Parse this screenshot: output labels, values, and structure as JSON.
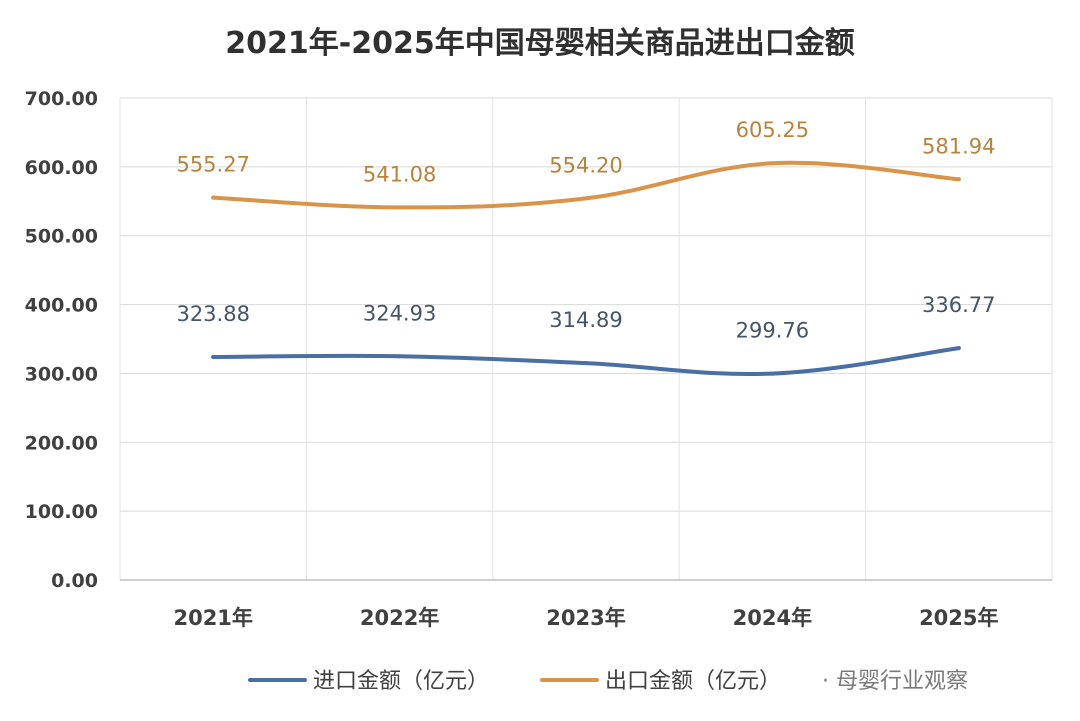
{
  "chart_data": {
    "type": "line",
    "title": "2021年-2025年中国母婴相关商品进出口金额",
    "categories": [
      "2021年",
      "2022年",
      "2023年",
      "2024年",
      "2025年"
    ],
    "yticks": [
      "0.00",
      "100.00",
      "200.00",
      "300.00",
      "400.00",
      "500.00",
      "600.00",
      "700.00"
    ],
    "ylim": [
      0,
      700
    ],
    "grid": true,
    "legend_position": "bottom",
    "series": [
      {
        "name": "进口金额（亿元）",
        "color": "#4a6fa5",
        "values": [
          323.88,
          324.93,
          314.89,
          299.76,
          336.77
        ],
        "labels": [
          "323.88",
          "324.93",
          "314.89",
          "299.76",
          "336.77"
        ]
      },
      {
        "name": "出口金额（亿元）",
        "color": "#d9944a",
        "values": [
          555.27,
          541.08,
          554.2,
          605.25,
          581.94
        ],
        "labels": [
          "555.27",
          "541.08",
          "554.20",
          "605.25",
          "581.94"
        ]
      }
    ]
  },
  "watermark": {
    "text": "· 母婴行业观察"
  }
}
